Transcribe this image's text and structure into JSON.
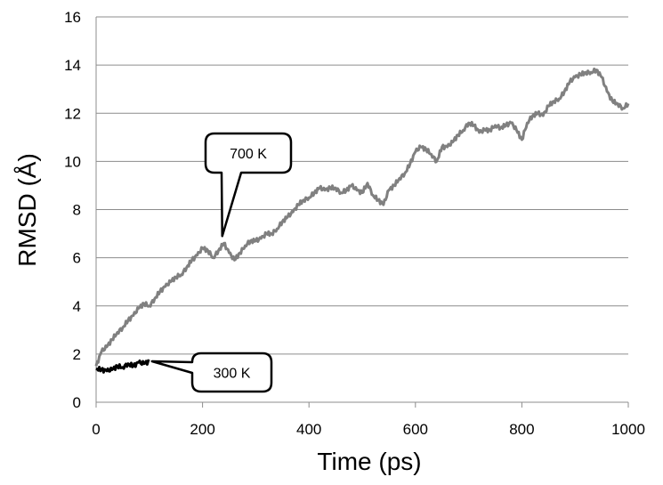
{
  "chart_data": {
    "type": "line",
    "title": "",
    "xlabel": "Time (ps)",
    "ylabel": "RMSD (Å)",
    "xlim": [
      0,
      1000
    ],
    "ylim": [
      0,
      16
    ],
    "x_ticks": [
      "0",
      "200",
      "400",
      "600",
      "800",
      "1000"
    ],
    "y_ticks": [
      "0",
      "2",
      "4",
      "6",
      "8",
      "10",
      "12",
      "14",
      "16"
    ],
    "grid": "horizontal",
    "legend": "none",
    "series": [
      {
        "name": "700 K",
        "color": "#808080",
        "x": [
          0,
          10,
          20,
          30,
          40,
          50,
          60,
          70,
          80,
          90,
          100,
          110,
          120,
          130,
          140,
          150,
          160,
          170,
          180,
          190,
          200,
          210,
          220,
          230,
          240,
          250,
          260,
          270,
          280,
          290,
          300,
          310,
          320,
          330,
          340,
          350,
          360,
          370,
          380,
          390,
          400,
          410,
          420,
          430,
          440,
          450,
          460,
          470,
          480,
          490,
          500,
          510,
          520,
          530,
          540,
          550,
          560,
          570,
          580,
          590,
          600,
          610,
          620,
          630,
          640,
          650,
          660,
          670,
          680,
          690,
          700,
          710,
          720,
          730,
          740,
          750,
          760,
          770,
          780,
          790,
          800,
          810,
          820,
          830,
          840,
          850,
          860,
          870,
          880,
          890,
          900,
          910,
          920,
          930,
          940,
          950,
          960,
          970,
          980,
          990,
          1000
        ],
        "y": [
          1.5,
          2.1,
          2.3,
          2.6,
          2.9,
          3.1,
          3.4,
          3.6,
          3.9,
          4.1,
          4.0,
          4.3,
          4.6,
          4.8,
          5.0,
          5.2,
          5.3,
          5.6,
          5.9,
          6.1,
          6.4,
          6.3,
          6.0,
          6.3,
          6.6,
          6.2,
          5.9,
          6.2,
          6.5,
          6.7,
          6.7,
          6.8,
          7.0,
          7.0,
          7.2,
          7.5,
          7.7,
          7.9,
          8.2,
          8.4,
          8.5,
          8.7,
          8.9,
          8.8,
          8.9,
          8.9,
          8.7,
          8.8,
          9.0,
          8.8,
          8.7,
          9.1,
          8.6,
          8.4,
          8.2,
          8.8,
          9.0,
          9.3,
          9.5,
          9.9,
          10.4,
          10.6,
          10.5,
          10.3,
          10.0,
          10.6,
          10.6,
          10.8,
          11.1,
          11.3,
          11.6,
          11.5,
          11.2,
          11.3,
          11.3,
          11.5,
          11.4,
          11.5,
          11.6,
          11.3,
          10.9,
          11.6,
          11.9,
          12.0,
          11.9,
          12.3,
          12.5,
          12.6,
          12.9,
          13.3,
          13.5,
          13.6,
          13.7,
          13.7,
          13.8,
          13.5,
          12.9,
          12.5,
          12.4,
          12.2,
          12.4
        ]
      },
      {
        "name": "300 K",
        "color": "#000000",
        "x": [
          0,
          10,
          20,
          30,
          40,
          50,
          60,
          70,
          80,
          90,
          100
        ],
        "y": [
          1.4,
          1.35,
          1.3,
          1.35,
          1.5,
          1.45,
          1.6,
          1.5,
          1.65,
          1.6,
          1.7
        ]
      }
    ],
    "annotations": [
      {
        "text": "700 K",
        "target_x": 237,
        "target_y": 6.9
      },
      {
        "text": "300 K",
        "target_x": 105,
        "target_y": 1.7
      }
    ]
  }
}
